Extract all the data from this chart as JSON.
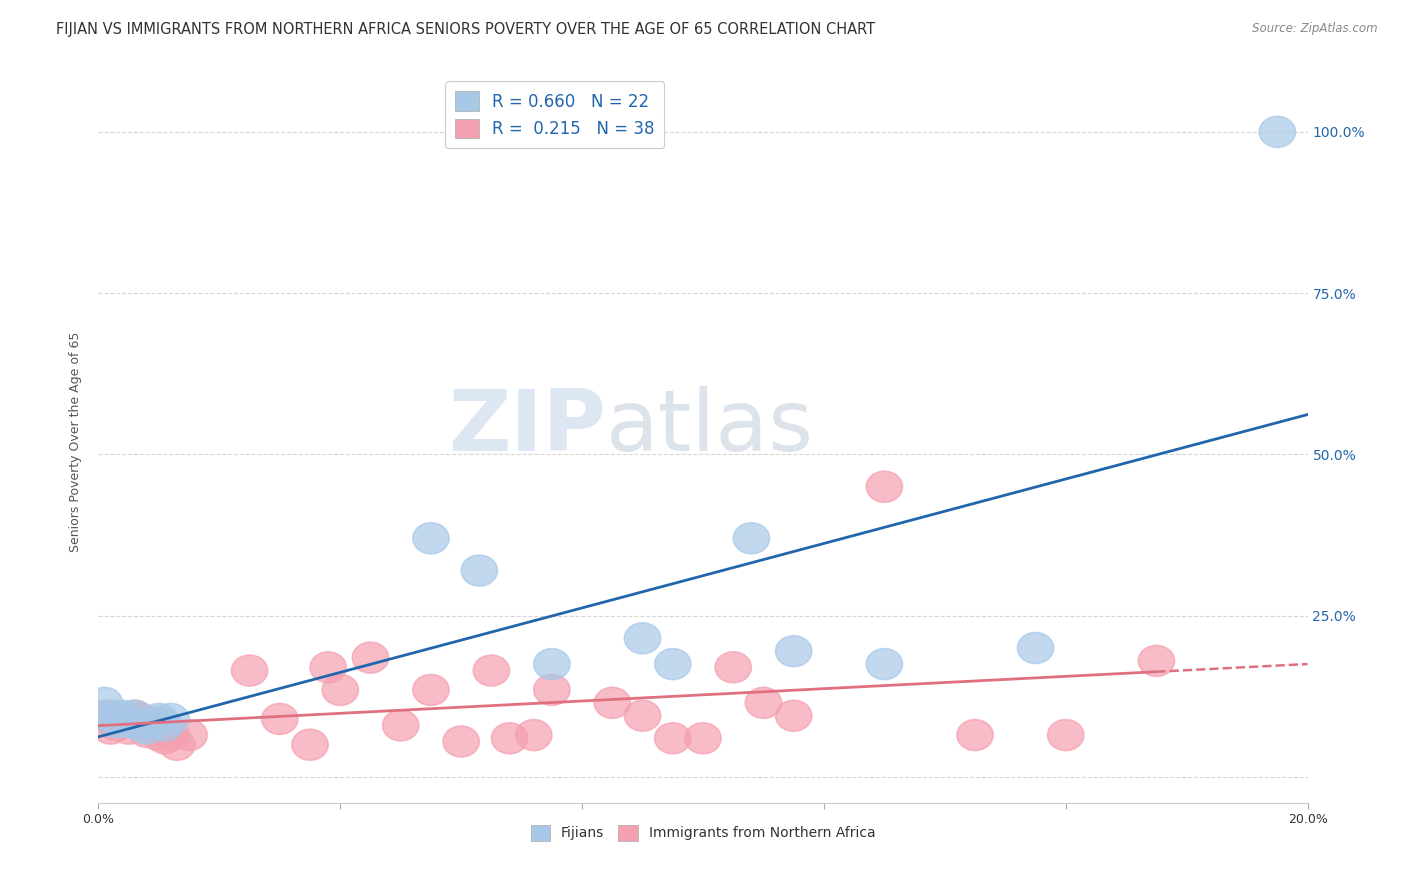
{
  "title": "FIJIAN VS IMMIGRANTS FROM NORTHERN AFRICA SENIORS POVERTY OVER THE AGE OF 65 CORRELATION CHART",
  "source": "Source: ZipAtlas.com",
  "ylabel": "Seniors Poverty Over the Age of 65",
  "xlim": [
    0.0,
    0.2
  ],
  "ylim": [
    -0.04,
    1.08
  ],
  "yticks_right": [
    0.0,
    0.25,
    0.5,
    0.75,
    1.0
  ],
  "ytick_labels_right": [
    "",
    "25.0%",
    "50.0%",
    "75.0%",
    "100.0%"
  ],
  "fijian_color": "#a8c8e8",
  "northern_africa_color": "#f4a0b0",
  "fijian_R": 0.66,
  "fijian_N": 22,
  "northern_africa_R": 0.215,
  "northern_africa_N": 38,
  "watermark_zip": "ZIP",
  "watermark_atlas": "atlas",
  "legend_label_fijian": "Fijians",
  "legend_label_northern_africa": "Immigrants from Northern Africa",
  "fijian_x": [
    0.001,
    0.002,
    0.003,
    0.004,
    0.005,
    0.006,
    0.007,
    0.008,
    0.009,
    0.01,
    0.011,
    0.012,
    0.055,
    0.063,
    0.075,
    0.09,
    0.095,
    0.108,
    0.115,
    0.13,
    0.155,
    0.195
  ],
  "fijian_y": [
    0.115,
    0.095,
    0.085,
    0.095,
    0.085,
    0.095,
    0.08,
    0.075,
    0.085,
    0.09,
    0.08,
    0.09,
    0.37,
    0.32,
    0.175,
    0.215,
    0.175,
    0.37,
    0.195,
    0.175,
    0.2,
    1.0
  ],
  "northern_africa_x": [
    0.001,
    0.002,
    0.003,
    0.004,
    0.005,
    0.006,
    0.007,
    0.008,
    0.009,
    0.01,
    0.011,
    0.012,
    0.013,
    0.015,
    0.025,
    0.03,
    0.035,
    0.038,
    0.04,
    0.045,
    0.05,
    0.055,
    0.06,
    0.065,
    0.068,
    0.072,
    0.075,
    0.085,
    0.09,
    0.095,
    0.1,
    0.105,
    0.11,
    0.115,
    0.13,
    0.145,
    0.16,
    0.175
  ],
  "northern_africa_y": [
    0.095,
    0.075,
    0.08,
    0.09,
    0.075,
    0.095,
    0.09,
    0.07,
    0.08,
    0.065,
    0.06,
    0.065,
    0.05,
    0.065,
    0.165,
    0.09,
    0.05,
    0.17,
    0.135,
    0.185,
    0.08,
    0.135,
    0.055,
    0.165,
    0.06,
    0.065,
    0.135,
    0.115,
    0.095,
    0.06,
    0.06,
    0.17,
    0.115,
    0.095,
    0.45,
    0.065,
    0.065,
    0.18
  ],
  "background_color": "#ffffff",
  "grid_color": "#cccccc",
  "title_fontsize": 10.5,
  "axis_label_fontsize": 9,
  "tick_fontsize": 9,
  "fijian_line_color": "#2166ac",
  "northern_africa_line_color": "#e07080",
  "legend_text_color": "#2166ac"
}
